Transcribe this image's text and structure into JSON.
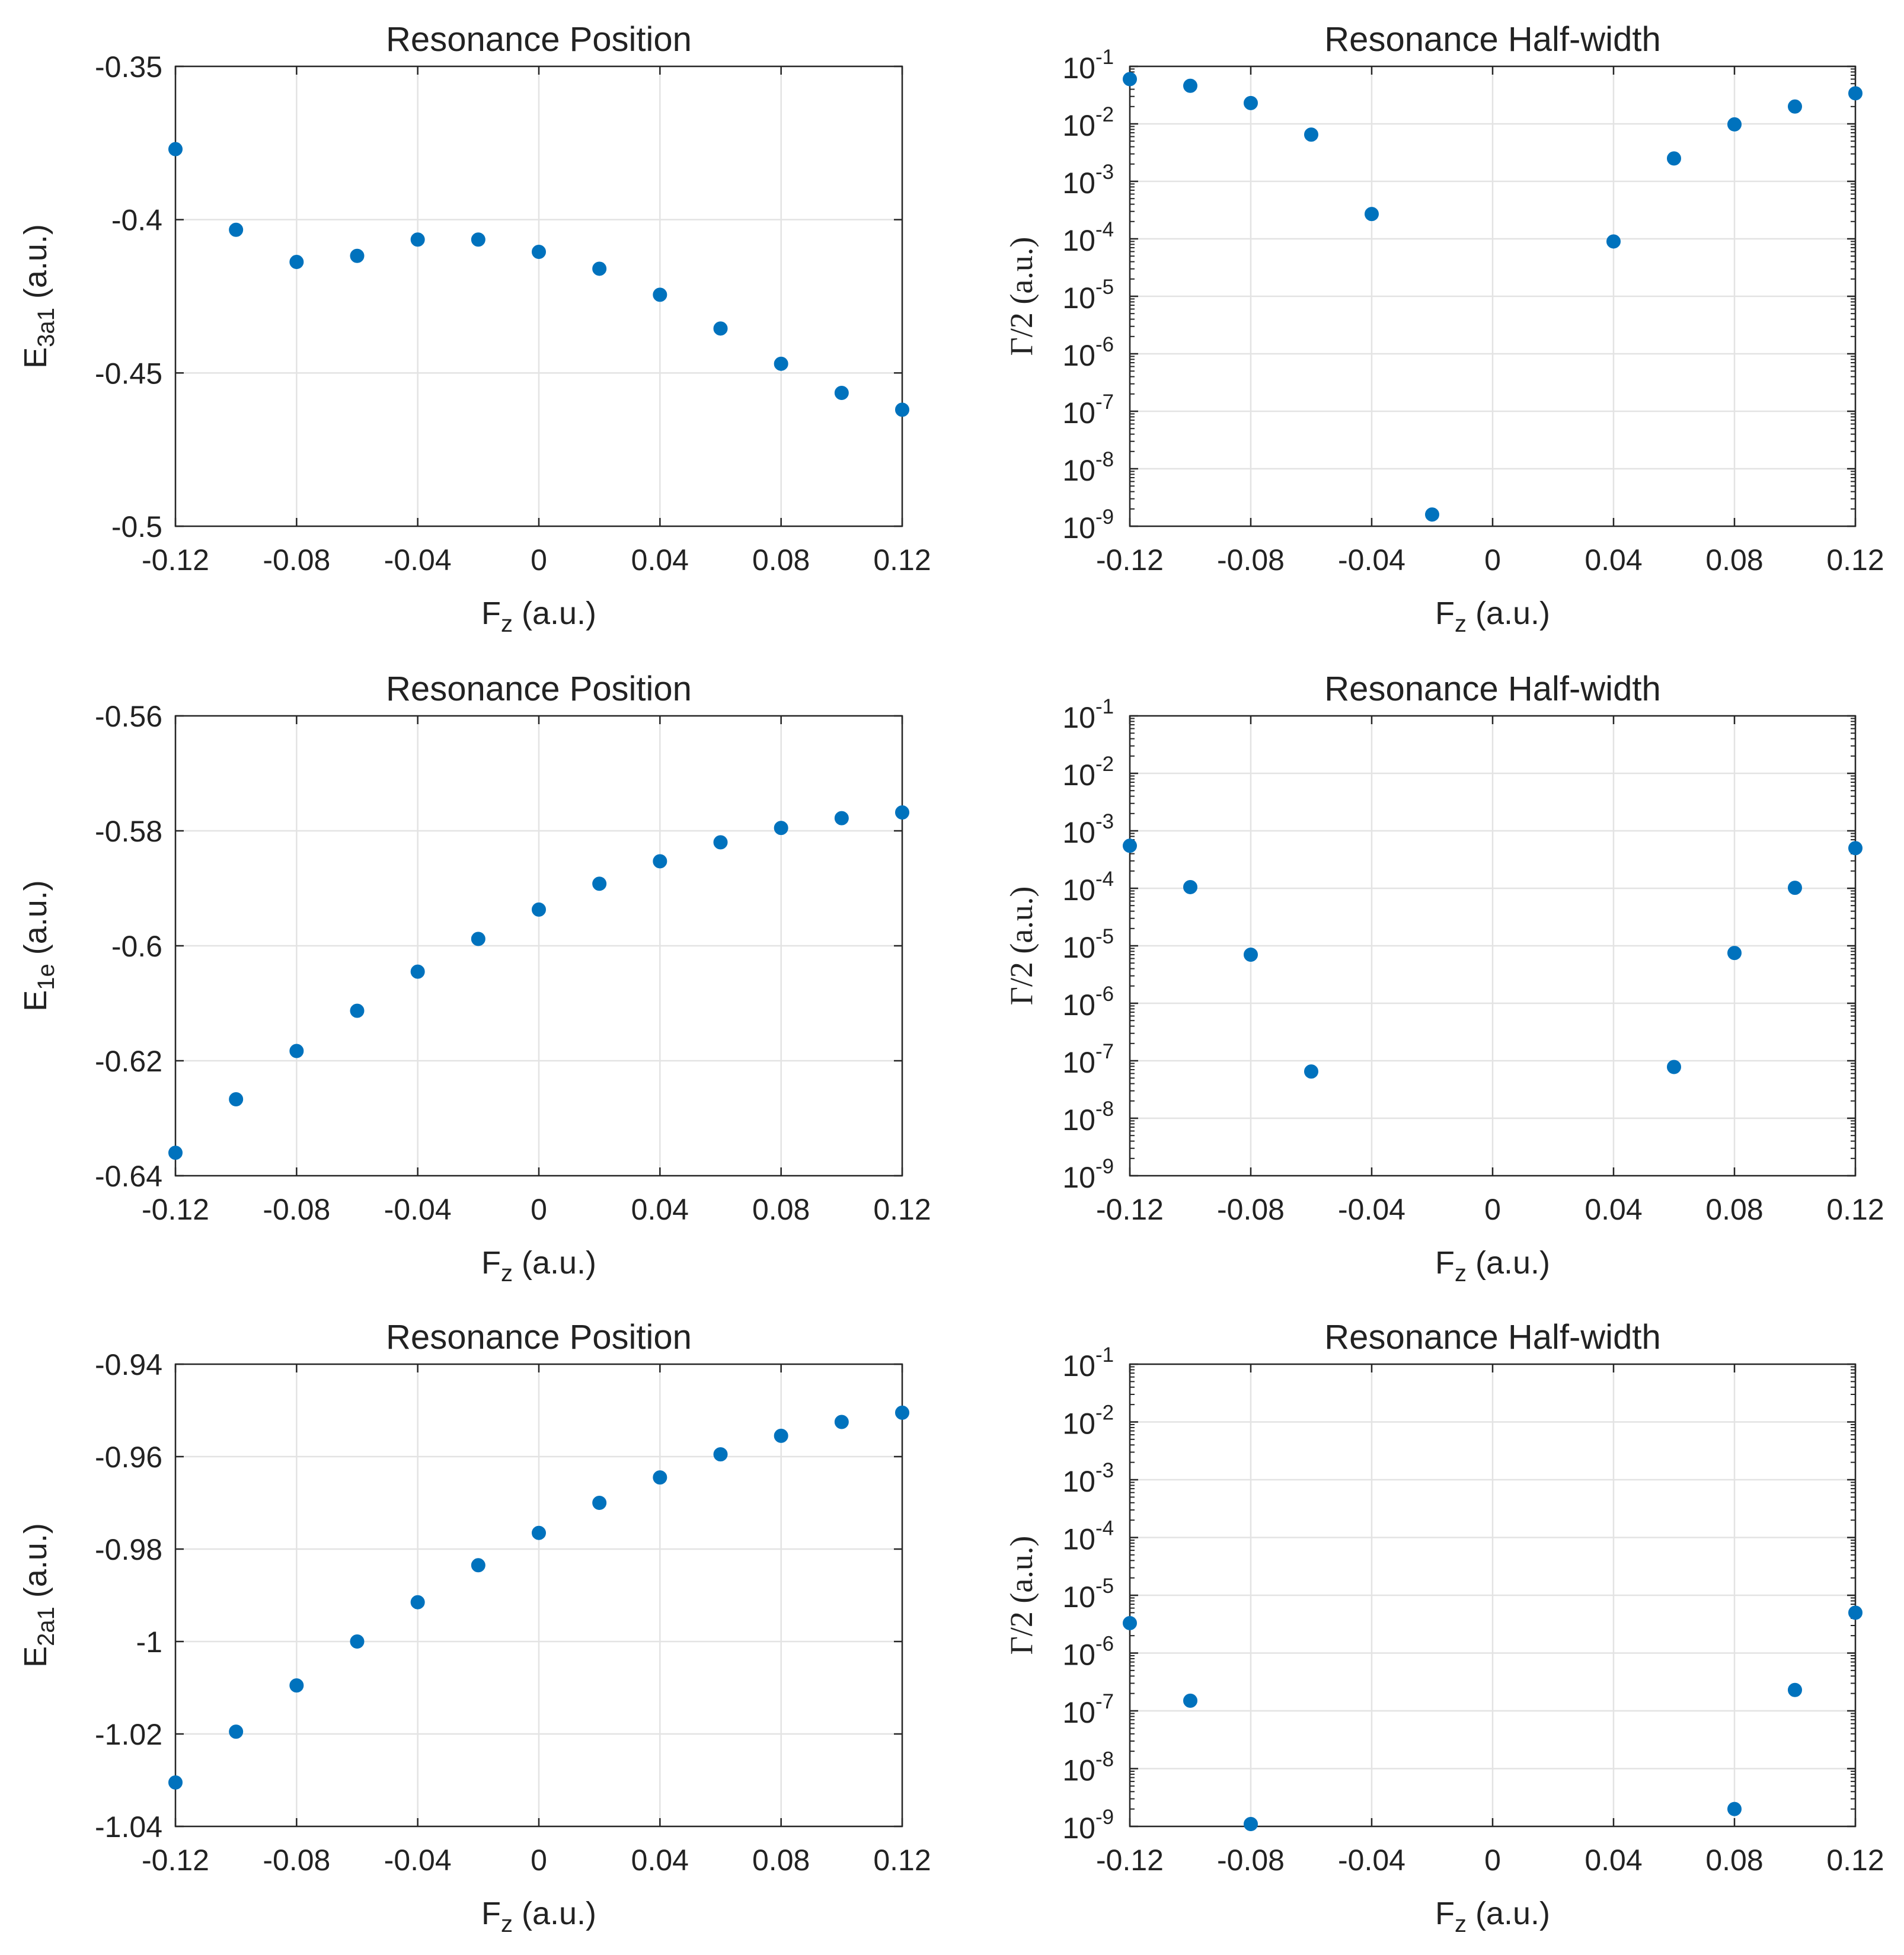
{
  "colors": {
    "marker": "#0072BD",
    "axis": "#262626",
    "grid": "#e3e3e3",
    "text": "#222222",
    "background": "#ffffff"
  },
  "chart_data": [
    {
      "panel": "row-1-left",
      "type": "scatter",
      "title": "Resonance Position",
      "xlabel": {
        "base": "F",
        "sub": "z",
        "unit": "(a.u.)"
      },
      "ylabel": {
        "base": "E",
        "sub": "3a1",
        "unit": "(a.u.)"
      },
      "xlim": [
        -0.12,
        0.12
      ],
      "ylim": [
        -0.5,
        -0.35
      ],
      "yscale": "linear",
      "grid": true,
      "x_ticks": [
        -0.12,
        -0.08,
        -0.04,
        0,
        0.04,
        0.08,
        0.12
      ],
      "x_tick_labels": [
        "-0.12",
        "-0.08",
        "-0.04",
        "0",
        "0.04",
        "0.08",
        "0.12"
      ],
      "y_ticks": [
        -0.35,
        -0.4,
        -0.45,
        -0.5
      ],
      "y_tick_labels": [
        "-0.35",
        "-0.4",
        "-0.45",
        "-0.5"
      ],
      "x": [
        -0.12,
        -0.1,
        -0.08,
        -0.06,
        -0.04,
        -0.02,
        0,
        0.02,
        0.04,
        0.06,
        0.08,
        0.1,
        0.12
      ],
      "y": [
        -0.377,
        -0.4033,
        -0.4138,
        -0.4118,
        -0.4065,
        -0.4065,
        -0.4105,
        -0.416,
        -0.4245,
        -0.4355,
        -0.447,
        -0.4565,
        -0.462
      ]
    },
    {
      "panel": "row-1-right",
      "type": "scatter",
      "title": "Resonance Half-width",
      "xlabel": {
        "base": "F",
        "sub": "z",
        "unit": "(a.u.)"
      },
      "ylabel": {
        "text": "Γ/2 (a.u.)"
      },
      "xlim": [
        -0.12,
        0.12
      ],
      "ylim": [
        1e-09,
        0.1
      ],
      "yscale": "log",
      "grid": true,
      "x_ticks": [
        -0.12,
        -0.08,
        -0.04,
        0,
        0.04,
        0.08,
        0.12
      ],
      "x_tick_labels": [
        "-0.12",
        "-0.08",
        "-0.04",
        "0",
        "0.04",
        "0.08",
        "0.12"
      ],
      "y_tick_labels": [
        {
          "base": "10",
          "exp": "-1"
        },
        {
          "base": "10",
          "exp": "-2"
        },
        {
          "base": "10",
          "exp": "-3"
        },
        {
          "base": "10",
          "exp": "-4"
        },
        {
          "base": "10",
          "exp": "-5"
        },
        {
          "base": "10",
          "exp": "-6"
        },
        {
          "base": "10",
          "exp": "-7"
        },
        {
          "base": "10",
          "exp": "-8"
        },
        {
          "base": "10",
          "exp": "-9"
        }
      ],
      "x": [
        -0.12,
        -0.1,
        -0.08,
        -0.06,
        -0.04,
        -0.02,
        0.04,
        0.06,
        0.08,
        0.1,
        0.12
      ],
      "y": [
        0.06,
        0.046,
        0.023,
        0.0065,
        0.00027,
        1.6e-09,
        9e-05,
        0.0025,
        0.0098,
        0.02,
        0.034
      ]
    },
    {
      "panel": "row-2-left",
      "type": "scatter",
      "title": "Resonance Position",
      "xlabel": {
        "base": "F",
        "sub": "z",
        "unit": "(a.u.)"
      },
      "ylabel": {
        "base": "E",
        "sub": "1e",
        "unit": "(a.u.)"
      },
      "xlim": [
        -0.12,
        0.12
      ],
      "ylim": [
        -0.64,
        -0.56
      ],
      "yscale": "linear",
      "grid": true,
      "x_ticks": [
        -0.12,
        -0.08,
        -0.04,
        0,
        0.04,
        0.08,
        0.12
      ],
      "x_tick_labels": [
        "-0.12",
        "-0.08",
        "-0.04",
        "0",
        "0.04",
        "0.08",
        "0.12"
      ],
      "y_ticks": [
        -0.56,
        -0.58,
        -0.6,
        -0.62,
        -0.64
      ],
      "y_tick_labels": [
        "-0.56",
        "-0.58",
        "-0.6",
        "-0.62",
        "-0.64"
      ],
      "x": [
        -0.12,
        -0.1,
        -0.08,
        -0.06,
        -0.04,
        -0.02,
        0,
        0.02,
        0.04,
        0.06,
        0.08,
        0.1,
        0.12
      ],
      "y": [
        -0.636,
        -0.6267,
        -0.6183,
        -0.6113,
        -0.6045,
        -0.5988,
        -0.5937,
        -0.5892,
        -0.5853,
        -0.582,
        -0.5795,
        -0.5778,
        -0.5768
      ]
    },
    {
      "panel": "row-2-right",
      "type": "scatter",
      "title": "Resonance Half-width",
      "xlabel": {
        "base": "F",
        "sub": "z",
        "unit": "(a.u.)"
      },
      "ylabel": {
        "text": "Γ/2 (a.u.)"
      },
      "xlim": [
        -0.12,
        0.12
      ],
      "ylim": [
        1e-09,
        0.1
      ],
      "yscale": "log",
      "grid": true,
      "x_ticks": [
        -0.12,
        -0.08,
        -0.04,
        0,
        0.04,
        0.08,
        0.12
      ],
      "x_tick_labels": [
        "-0.12",
        "-0.08",
        "-0.04",
        "0",
        "0.04",
        "0.08",
        "0.12"
      ],
      "y_tick_labels": [
        {
          "base": "10",
          "exp": "-1"
        },
        {
          "base": "10",
          "exp": "-2"
        },
        {
          "base": "10",
          "exp": "-3"
        },
        {
          "base": "10",
          "exp": "-4"
        },
        {
          "base": "10",
          "exp": "-5"
        },
        {
          "base": "10",
          "exp": "-6"
        },
        {
          "base": "10",
          "exp": "-7"
        },
        {
          "base": "10",
          "exp": "-8"
        },
        {
          "base": "10",
          "exp": "-9"
        }
      ],
      "x": [
        -0.12,
        -0.1,
        -0.08,
        -0.06,
        0.06,
        0.08,
        0.1,
        0.12
      ],
      "y": [
        0.00055,
        0.000105,
        7e-06,
        6.5e-08,
        7.8e-08,
        7.5e-06,
        0.000102,
        0.0005
      ]
    },
    {
      "panel": "row-3-left",
      "type": "scatter",
      "title": "Resonance Position",
      "xlabel": {
        "base": "F",
        "sub": "z",
        "unit": "(a.u.)"
      },
      "ylabel": {
        "base": "E",
        "sub": "2a1",
        "unit": "(a.u.)"
      },
      "xlim": [
        -0.12,
        0.12
      ],
      "ylim": [
        -1.04,
        -0.94
      ],
      "yscale": "linear",
      "grid": true,
      "x_ticks": [
        -0.12,
        -0.08,
        -0.04,
        0,
        0.04,
        0.08,
        0.12
      ],
      "x_tick_labels": [
        "-0.12",
        "-0.08",
        "-0.04",
        "0",
        "0.04",
        "0.08",
        "0.12"
      ],
      "y_ticks": [
        -0.94,
        -0.96,
        -0.98,
        -1,
        -1.02,
        -1.04
      ],
      "y_tick_labels": [
        "-0.94",
        "-0.96",
        "-0.98",
        "-1",
        "-1.02",
        "-1.04"
      ],
      "x": [
        -0.12,
        -0.1,
        -0.08,
        -0.06,
        -0.04,
        -0.02,
        0,
        0.02,
        0.04,
        0.06,
        0.08,
        0.1,
        0.12
      ],
      "y": [
        -1.0305,
        -1.0195,
        -1.0095,
        -1.0,
        -0.9915,
        -0.9835,
        -0.9765,
        -0.97,
        -0.9645,
        -0.9595,
        -0.9555,
        -0.9525,
        -0.9505
      ]
    },
    {
      "panel": "row-3-right",
      "type": "scatter",
      "title": "Resonance Half-width",
      "xlabel": {
        "base": "F",
        "sub": "z",
        "unit": "(a.u.)"
      },
      "ylabel": {
        "text": "Γ/2 (a.u.)"
      },
      "xlim": [
        -0.12,
        0.12
      ],
      "ylim": [
        1e-09,
        0.1
      ],
      "yscale": "log",
      "grid": true,
      "x_ticks": [
        -0.12,
        -0.08,
        -0.04,
        0,
        0.04,
        0.08,
        0.12
      ],
      "x_tick_labels": [
        "-0.12",
        "-0.08",
        "-0.04",
        "0",
        "0.04",
        "0.08",
        "0.12"
      ],
      "y_tick_labels": [
        {
          "base": "10",
          "exp": "-1"
        },
        {
          "base": "10",
          "exp": "-2"
        },
        {
          "base": "10",
          "exp": "-3"
        },
        {
          "base": "10",
          "exp": "-4"
        },
        {
          "base": "10",
          "exp": "-5"
        },
        {
          "base": "10",
          "exp": "-6"
        },
        {
          "base": "10",
          "exp": "-7"
        },
        {
          "base": "10",
          "exp": "-8"
        },
        {
          "base": "10",
          "exp": "-9"
        }
      ],
      "x": [
        -0.12,
        -0.1,
        -0.08,
        0.08,
        0.1,
        0.12
      ],
      "y": [
        3.3e-06,
        1.5e-07,
        1.1e-09,
        2e-09,
        2.3e-07,
        5e-06
      ]
    }
  ]
}
